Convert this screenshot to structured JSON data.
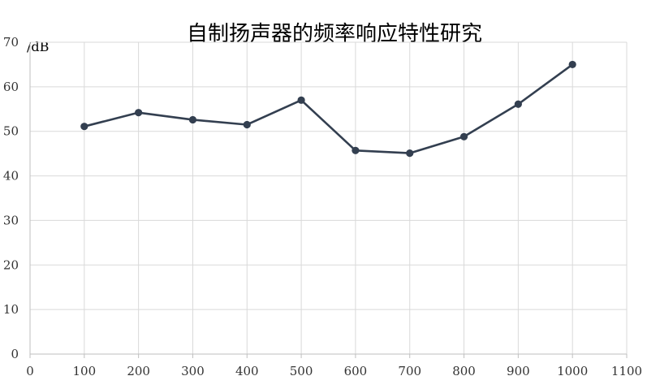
{
  "chart_data": {
    "type": "line",
    "title": "自制扬声器的频率响应特性研究",
    "y_unit_label": "/dB",
    "xlabel": "",
    "ylabel": "",
    "xlim": [
      0,
      1100
    ],
    "ylim": [
      0,
      70
    ],
    "x_ticks": [
      0,
      100,
      200,
      300,
      400,
      500,
      600,
      700,
      800,
      900,
      1000,
      1100
    ],
    "y_ticks": [
      0,
      10,
      20,
      30,
      40,
      50,
      60,
      70
    ],
    "grid": true,
    "series": [
      {
        "x": [
          100,
          200,
          300,
          400,
          500,
          600,
          700,
          800,
          900,
          1000
        ],
        "y": [
          51.1,
          54.2,
          52.6,
          51.5,
          57.0,
          45.7,
          45.1,
          48.8,
          56.1,
          65.0
        ],
        "color": "#333f50"
      }
    ]
  }
}
